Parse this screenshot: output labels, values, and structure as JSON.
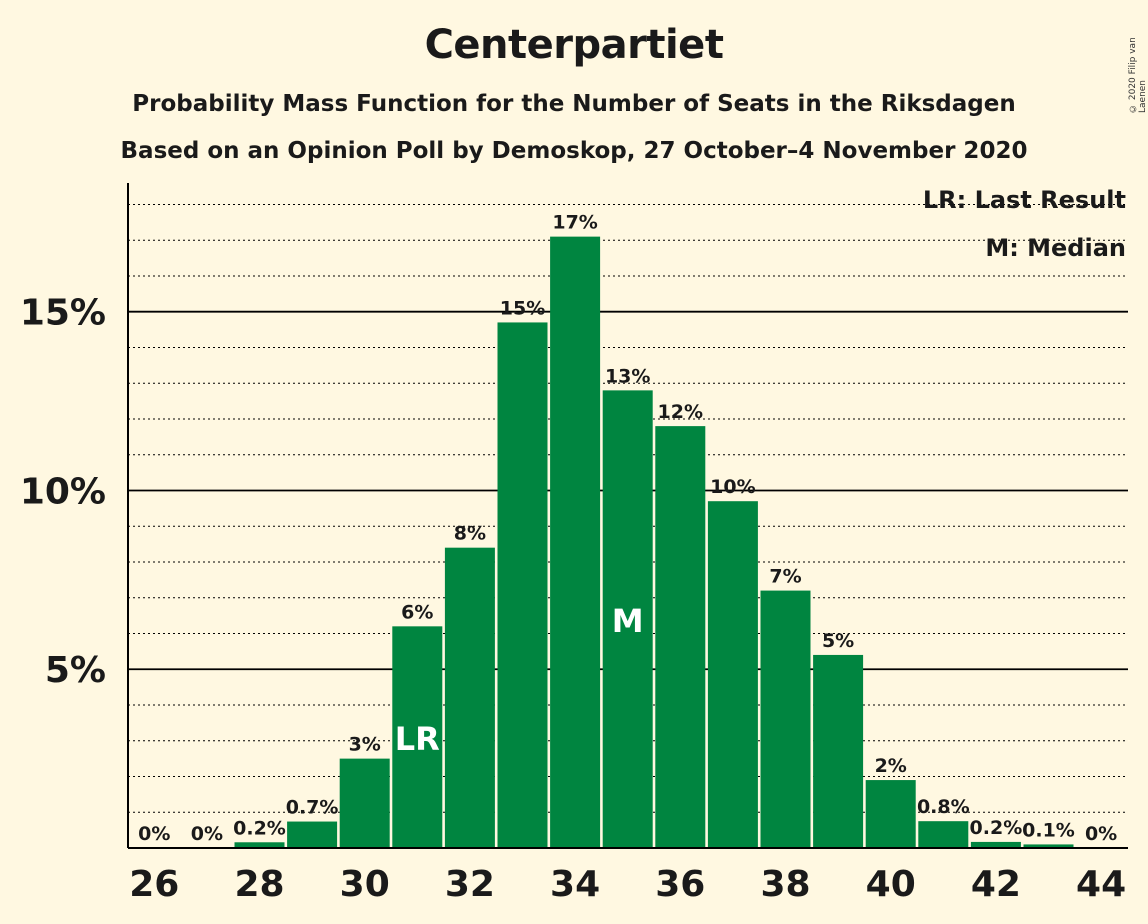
{
  "chart_data": {
    "type": "bar",
    "title": "Centerpartiet",
    "subtitle": "Probability Mass Function for the Number of Seats in the Riksdagen",
    "subtitle2": "Based on an Opinion Poll by Demoskop, 27 October–4 November 2020",
    "copyright": "© 2020 Filip van Laenen",
    "categories": [
      26,
      27,
      28,
      29,
      30,
      31,
      32,
      33,
      34,
      35,
      36,
      37,
      38,
      39,
      40,
      41,
      42,
      43,
      44
    ],
    "values": [
      0,
      0,
      0.16,
      0.74,
      2.5,
      6.2,
      8.4,
      14.7,
      17.1,
      12.8,
      11.8,
      9.7,
      7.2,
      5.4,
      1.9,
      0.75,
      0.17,
      0.1,
      0
    ],
    "value_labels": [
      "0%",
      "0%",
      "0.2%",
      "0.7%",
      "3%",
      "6%",
      "8%",
      "15%",
      "17%",
      "13%",
      "12%",
      "10%",
      "7%",
      "5%",
      "2%",
      "0.8%",
      "0.2%",
      "0.1%",
      "0%"
    ],
    "x_tick_labels": [
      "26",
      "28",
      "30",
      "32",
      "34",
      "36",
      "38",
      "40",
      "42",
      "44"
    ],
    "y_tick_labels": [
      "5%",
      "10%",
      "15%"
    ],
    "ylim": [
      0,
      18.6
    ],
    "last_result": 31,
    "median": 35,
    "last_result_marker": "LR",
    "median_marker": "M",
    "legend": [
      "LR: Last Result",
      "M: Median"
    ],
    "legend_position": "top-right",
    "bar_color": "#008540",
    "background_color": "#FFF8E1"
  }
}
